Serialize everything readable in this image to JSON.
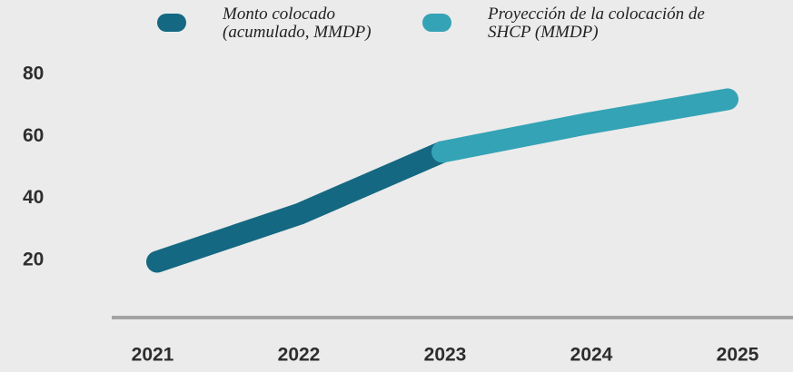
{
  "chart_data": {
    "type": "line",
    "categories": [
      "2021",
      "2022",
      "2023",
      "2024",
      "2025"
    ],
    "series": [
      {
        "name": "Monto colocado (acumulado, MMDP)",
        "color": "#146882",
        "values": [
          19.5,
          35,
          55,
          null,
          null
        ]
      },
      {
        "name": "Proyección de la colocación de SHCP (MMDP)",
        "color": "#34a3b5",
        "values": [
          null,
          null,
          55,
          64,
          72
        ]
      }
    ],
    "ylim": [
      0,
      90
    ],
    "yticks": [
      20,
      40,
      60,
      80
    ],
    "grid": false
  }
}
